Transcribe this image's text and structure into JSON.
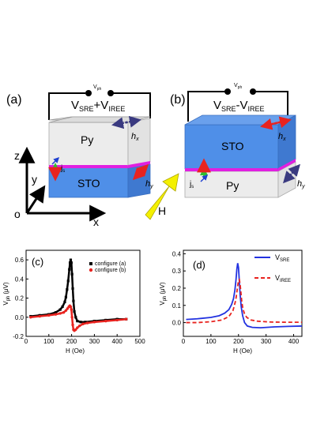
{
  "diagram": {
    "panel_a": {
      "label": "(a)",
      "voltage_sub": "V",
      "voltage_sub_suffix": "ph",
      "formula_sre": "V",
      "formula_sre_sub": "SRE",
      "formula_op": "+",
      "formula_iree": "V",
      "formula_iree_sub": "IREE",
      "top_layer": "Py",
      "bottom_layer": "STO",
      "hx": "h",
      "hx_sub": "x",
      "hy": "h",
      "hy_sub": "y",
      "js": "j",
      "js_sub": "s"
    },
    "panel_b": {
      "label": "(b)",
      "voltage_sub": "V",
      "voltage_sub_suffix": "ph",
      "formula_sre": "V",
      "formula_sre_sub": "SRE",
      "formula_op": "-",
      "formula_iree": "V",
      "formula_iree_sub": "IREE",
      "top_layer": "STO",
      "bottom_layer": "Py",
      "hx": "h",
      "hx_sub": "x",
      "hy": "h",
      "hy_sub": "y",
      "js": "j",
      "js_sub": "s"
    },
    "axes": {
      "z": "z",
      "y": "y",
      "x": "x",
      "o": "o"
    },
    "field": "H",
    "colors": {
      "sto": "#4f8fe8",
      "py": "#ececec",
      "interface": "#e020e0",
      "arrow_field": "#f4f000"
    }
  },
  "chart_data": [
    {
      "panel": "(c)",
      "type": "scatter",
      "xlabel": "H (Oe)",
      "ylabel": "V",
      "ylabel_sub": "ph",
      "ylabel_unit": "(μV)",
      "xlim": [
        0,
        500
      ],
      "ylim": [
        -0.2,
        0.7
      ],
      "xticks": [
        "0",
        "100",
        "200",
        "300",
        "400",
        "500"
      ],
      "yticks": [
        "-0.2",
        "0.0",
        "0.2",
        "0.4",
        "0.6"
      ],
      "series": [
        {
          "name": "configure (a)",
          "color": "#000000",
          "x": [
            20,
            60,
            100,
            130,
            150,
            160,
            170,
            175,
            180,
            185,
            190,
            193,
            196,
            199,
            202,
            205,
            208,
            212,
            218,
            225,
            240,
            260,
            300,
            350,
            400,
            440
          ],
          "y": [
            0.01,
            0.02,
            0.03,
            0.05,
            0.08,
            0.11,
            0.16,
            0.21,
            0.29,
            0.38,
            0.5,
            0.57,
            0.6,
            0.57,
            0.45,
            0.3,
            0.17,
            0.06,
            0.0,
            -0.04,
            -0.05,
            -0.05,
            -0.04,
            -0.03,
            -0.02,
            -0.02
          ]
        },
        {
          "name": "configure (b)",
          "color": "#e8231f",
          "x": [
            20,
            60,
            100,
            130,
            150,
            165,
            175,
            182,
            188,
            192,
            196,
            199,
            202,
            205,
            208,
            212,
            218,
            225,
            235,
            250,
            270,
            300,
            350,
            400,
            440
          ],
          "y": [
            0.0,
            0.01,
            0.02,
            0.03,
            0.04,
            0.05,
            0.07,
            0.09,
            0.11,
            0.12,
            0.11,
            0.08,
            0.0,
            -0.08,
            -0.13,
            -0.14,
            -0.13,
            -0.11,
            -0.09,
            -0.07,
            -0.06,
            -0.05,
            -0.04,
            -0.03,
            -0.02
          ]
        }
      ]
    },
    {
      "panel": "(d)",
      "type": "line",
      "xlabel": "H (Oe)",
      "ylabel": "V",
      "ylabel_sub": "ph",
      "ylabel_unit": "(μV)",
      "xlim": [
        0,
        430
      ],
      "ylim": [
        -0.08,
        0.42
      ],
      "xticks": [
        "0",
        "100",
        "200",
        "300",
        "400"
      ],
      "yticks": [
        "0.0",
        "0.1",
        "0.2",
        "0.3",
        "0.4"
      ],
      "series": [
        {
          "name": "V",
          "name_sub": "SRE",
          "color": "#2232e0",
          "dash": "solid",
          "x": [
            10,
            50,
            100,
            130,
            150,
            165,
            175,
            182,
            187,
            191,
            194,
            197,
            200,
            203,
            206,
            210,
            215,
            222,
            232,
            250,
            280,
            330,
            380,
            430
          ],
          "y": [
            0.018,
            0.022,
            0.03,
            0.04,
            0.055,
            0.075,
            0.105,
            0.14,
            0.19,
            0.25,
            0.31,
            0.345,
            0.32,
            0.24,
            0.16,
            0.09,
            0.04,
            0.0,
            -0.02,
            -0.028,
            -0.03,
            -0.025,
            -0.022,
            -0.02
          ]
        },
        {
          "name": "V",
          "name_sub": "IREE",
          "color": "#e8231f",
          "dash": "dashed",
          "x": [
            10,
            50,
            100,
            140,
            165,
            180,
            190,
            196,
            200,
            203,
            206,
            209,
            212,
            216,
            222,
            230,
            245,
            270,
            320,
            380,
            430
          ],
          "y": [
            0.0,
            0.0,
            0.005,
            0.015,
            0.035,
            0.07,
            0.13,
            0.2,
            0.245,
            0.25,
            0.22,
            0.17,
            0.12,
            0.08,
            0.05,
            0.03,
            0.015,
            0.008,
            0.003,
            0.002,
            0.002
          ]
        }
      ]
    }
  ]
}
